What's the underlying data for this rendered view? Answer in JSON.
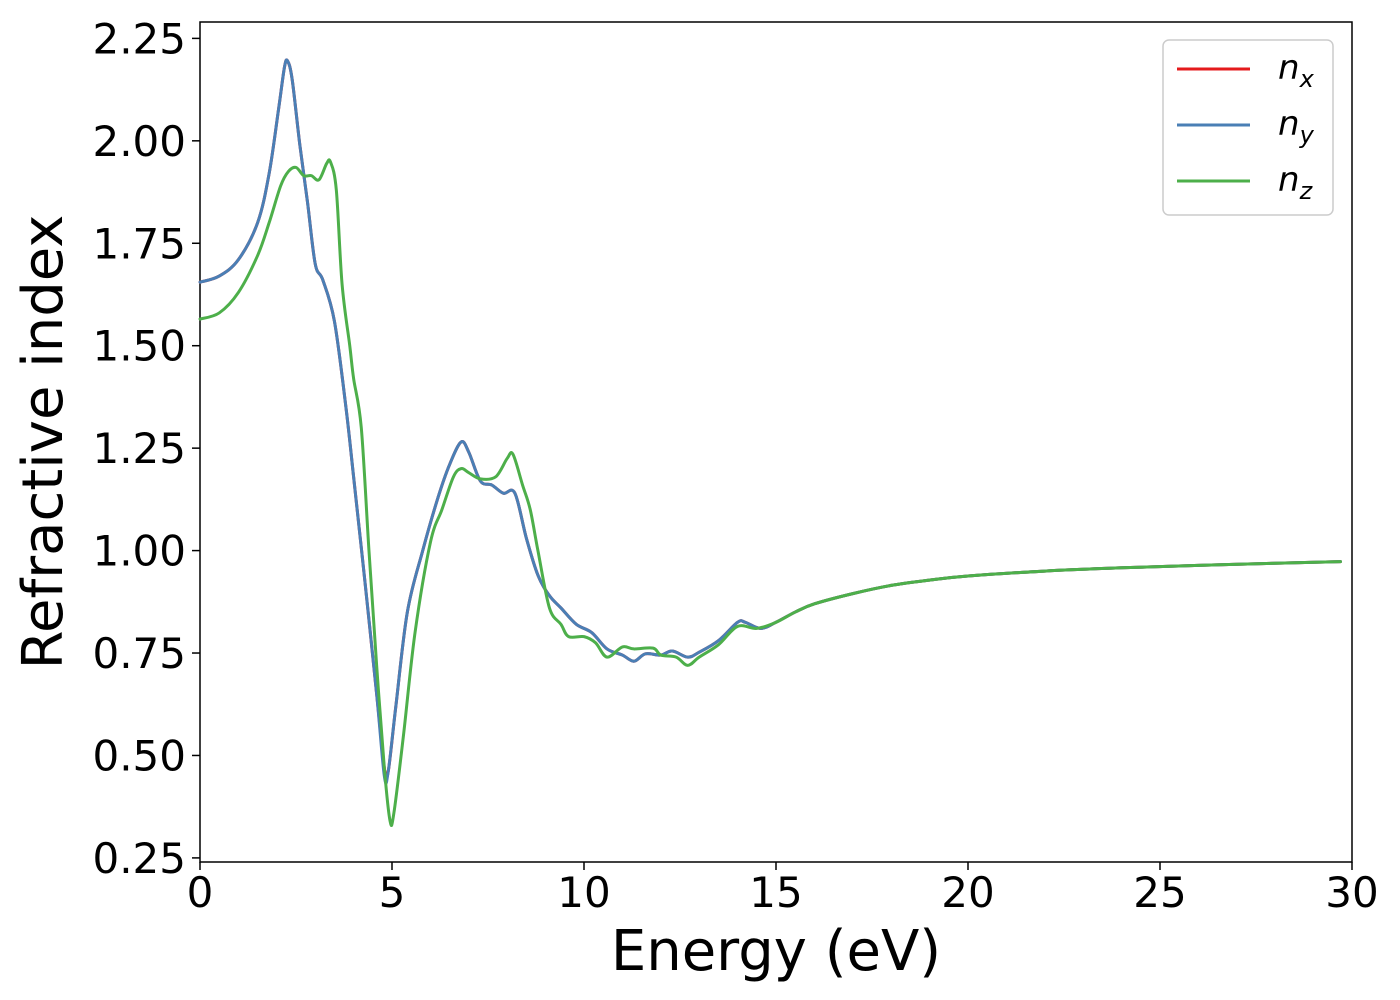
{
  "chart_data": {
    "type": "line",
    "title": "",
    "xlabel": "Energy (eV)",
    "ylabel": "Refractive index",
    "xlim": [
      0,
      30
    ],
    "ylim": [
      0.24,
      2.29
    ],
    "xticks": [
      0,
      5,
      10,
      15,
      20,
      25,
      30
    ],
    "yticks": [
      0.25,
      0.5,
      0.75,
      1.0,
      1.25,
      1.5,
      1.75,
      2.0,
      2.25
    ],
    "xtick_labels": [
      "0",
      "5",
      "10",
      "15",
      "20",
      "25",
      "30"
    ],
    "ytick_labels": [
      "0.25",
      "0.50",
      "0.75",
      "1.00",
      "1.25",
      "1.50",
      "1.75",
      "2.00",
      "2.25"
    ],
    "grid": false,
    "legend_position": "top-right",
    "series": [
      {
        "name": "n_x",
        "label_base": "n",
        "label_sub": "x",
        "color": "#e41a1c",
        "points": [
          [
            0,
            1.655
          ],
          [
            0.5,
            1.67
          ],
          [
            1,
            1.71
          ],
          [
            1.5,
            1.8
          ],
          [
            1.8,
            1.92
          ],
          [
            2.05,
            2.08
          ],
          [
            2.2,
            2.18
          ],
          [
            2.28,
            2.195
          ],
          [
            2.4,
            2.15
          ],
          [
            2.6,
            1.99
          ],
          [
            2.8,
            1.85
          ],
          [
            3.0,
            1.7
          ],
          [
            3.2,
            1.66
          ],
          [
            3.5,
            1.56
          ],
          [
            3.8,
            1.35
          ],
          [
            4.0,
            1.18
          ],
          [
            4.3,
            0.92
          ],
          [
            4.6,
            0.65
          ],
          [
            4.8,
            0.47
          ],
          [
            4.9,
            0.46
          ],
          [
            5.1,
            0.62
          ],
          [
            5.4,
            0.85
          ],
          [
            5.8,
            1.0
          ],
          [
            6.2,
            1.13
          ],
          [
            6.5,
            1.21
          ],
          [
            6.8,
            1.265
          ],
          [
            7.0,
            1.24
          ],
          [
            7.3,
            1.17
          ],
          [
            7.6,
            1.16
          ],
          [
            7.9,
            1.14
          ],
          [
            8.2,
            1.14
          ],
          [
            8.5,
            1.03
          ],
          [
            8.8,
            0.94
          ],
          [
            9.1,
            0.89
          ],
          [
            9.4,
            0.86
          ],
          [
            9.8,
            0.82
          ],
          [
            10.2,
            0.8
          ],
          [
            10.6,
            0.76
          ],
          [
            11.0,
            0.745
          ],
          [
            11.3,
            0.73
          ],
          [
            11.6,
            0.748
          ],
          [
            12.0,
            0.745
          ],
          [
            12.3,
            0.755
          ],
          [
            12.7,
            0.74
          ],
          [
            13.0,
            0.752
          ],
          [
            13.5,
            0.78
          ],
          [
            14.0,
            0.825
          ],
          [
            14.2,
            0.825
          ],
          [
            14.6,
            0.81
          ],
          [
            15.0,
            0.825
          ],
          [
            15.5,
            0.85
          ],
          [
            16.0,
            0.87
          ],
          [
            17.0,
            0.895
          ],
          [
            18.0,
            0.915
          ],
          [
            19.0,
            0.928
          ],
          [
            20.0,
            0.938
          ],
          [
            22.0,
            0.95
          ],
          [
            24.0,
            0.958
          ],
          [
            26.0,
            0.964
          ],
          [
            28.0,
            0.969
          ],
          [
            29.7,
            0.973
          ]
        ]
      },
      {
        "name": "n_y",
        "label_base": "n",
        "label_sub": "y",
        "color": "#4a7fb5",
        "points": [
          [
            0,
            1.655
          ],
          [
            0.5,
            1.67
          ],
          [
            1,
            1.71
          ],
          [
            1.5,
            1.8
          ],
          [
            1.8,
            1.92
          ],
          [
            2.05,
            2.08
          ],
          [
            2.2,
            2.18
          ],
          [
            2.28,
            2.195
          ],
          [
            2.4,
            2.15
          ],
          [
            2.6,
            1.99
          ],
          [
            2.8,
            1.85
          ],
          [
            3.0,
            1.7
          ],
          [
            3.2,
            1.66
          ],
          [
            3.5,
            1.56
          ],
          [
            3.8,
            1.35
          ],
          [
            4.0,
            1.18
          ],
          [
            4.3,
            0.92
          ],
          [
            4.6,
            0.65
          ],
          [
            4.8,
            0.45
          ],
          [
            4.9,
            0.46
          ],
          [
            5.1,
            0.62
          ],
          [
            5.4,
            0.85
          ],
          [
            5.8,
            1.0
          ],
          [
            6.2,
            1.13
          ],
          [
            6.5,
            1.21
          ],
          [
            6.8,
            1.265
          ],
          [
            7.0,
            1.24
          ],
          [
            7.3,
            1.17
          ],
          [
            7.6,
            1.16
          ],
          [
            7.9,
            1.14
          ],
          [
            8.2,
            1.14
          ],
          [
            8.5,
            1.03
          ],
          [
            8.8,
            0.94
          ],
          [
            9.1,
            0.89
          ],
          [
            9.4,
            0.86
          ],
          [
            9.8,
            0.82
          ],
          [
            10.2,
            0.8
          ],
          [
            10.6,
            0.76
          ],
          [
            11.0,
            0.745
          ],
          [
            11.3,
            0.73
          ],
          [
            11.6,
            0.748
          ],
          [
            12.0,
            0.745
          ],
          [
            12.3,
            0.755
          ],
          [
            12.7,
            0.74
          ],
          [
            13.0,
            0.752
          ],
          [
            13.5,
            0.78
          ],
          [
            14.0,
            0.825
          ],
          [
            14.2,
            0.825
          ],
          [
            14.6,
            0.81
          ],
          [
            15.0,
            0.825
          ],
          [
            15.5,
            0.85
          ],
          [
            16.0,
            0.87
          ],
          [
            17.0,
            0.895
          ],
          [
            18.0,
            0.915
          ],
          [
            19.0,
            0.928
          ],
          [
            20.0,
            0.938
          ],
          [
            22.0,
            0.95
          ],
          [
            24.0,
            0.958
          ],
          [
            26.0,
            0.964
          ],
          [
            28.0,
            0.969
          ],
          [
            29.7,
            0.973
          ]
        ]
      },
      {
        "name": "n_z",
        "label_base": "n",
        "label_sub": "z",
        "color": "#4daf4a",
        "points": [
          [
            0,
            1.565
          ],
          [
            0.5,
            1.58
          ],
          [
            1,
            1.63
          ],
          [
            1.5,
            1.72
          ],
          [
            1.8,
            1.8
          ],
          [
            2.1,
            1.89
          ],
          [
            2.3,
            1.925
          ],
          [
            2.5,
            1.935
          ],
          [
            2.7,
            1.915
          ],
          [
            2.9,
            1.915
          ],
          [
            3.1,
            1.905
          ],
          [
            3.3,
            1.945
          ],
          [
            3.4,
            1.948
          ],
          [
            3.55,
            1.88
          ],
          [
            3.7,
            1.65
          ],
          [
            3.9,
            1.5
          ],
          [
            4.0,
            1.42
          ],
          [
            4.2,
            1.3
          ],
          [
            4.4,
            1.0
          ],
          [
            4.6,
            0.72
          ],
          [
            4.8,
            0.47
          ],
          [
            4.95,
            0.34
          ],
          [
            5.05,
            0.36
          ],
          [
            5.3,
            0.55
          ],
          [
            5.6,
            0.8
          ],
          [
            6.0,
            1.02
          ],
          [
            6.3,
            1.1
          ],
          [
            6.6,
            1.18
          ],
          [
            6.8,
            1.2
          ],
          [
            7.0,
            1.19
          ],
          [
            7.3,
            1.175
          ],
          [
            7.7,
            1.18
          ],
          [
            8.0,
            1.225
          ],
          [
            8.15,
            1.235
          ],
          [
            8.4,
            1.16
          ],
          [
            8.6,
            1.1
          ],
          [
            8.8,
            1.0
          ],
          [
            9.1,
            0.86
          ],
          [
            9.4,
            0.82
          ],
          [
            9.6,
            0.79
          ],
          [
            10.0,
            0.79
          ],
          [
            10.3,
            0.775
          ],
          [
            10.6,
            0.74
          ],
          [
            11.0,
            0.765
          ],
          [
            11.3,
            0.76
          ],
          [
            11.8,
            0.762
          ],
          [
            12.0,
            0.745
          ],
          [
            12.4,
            0.74
          ],
          [
            12.7,
            0.72
          ],
          [
            13.0,
            0.74
          ],
          [
            13.5,
            0.77
          ],
          [
            14.0,
            0.815
          ],
          [
            14.5,
            0.81
          ],
          [
            15.0,
            0.825
          ],
          [
            15.5,
            0.85
          ],
          [
            16.0,
            0.87
          ],
          [
            17.0,
            0.895
          ],
          [
            18.0,
            0.915
          ],
          [
            19.0,
            0.928
          ],
          [
            20.0,
            0.938
          ],
          [
            22.0,
            0.95
          ],
          [
            24.0,
            0.958
          ],
          [
            26.0,
            0.964
          ],
          [
            28.0,
            0.969
          ],
          [
            29.7,
            0.973
          ]
        ]
      }
    ]
  }
}
